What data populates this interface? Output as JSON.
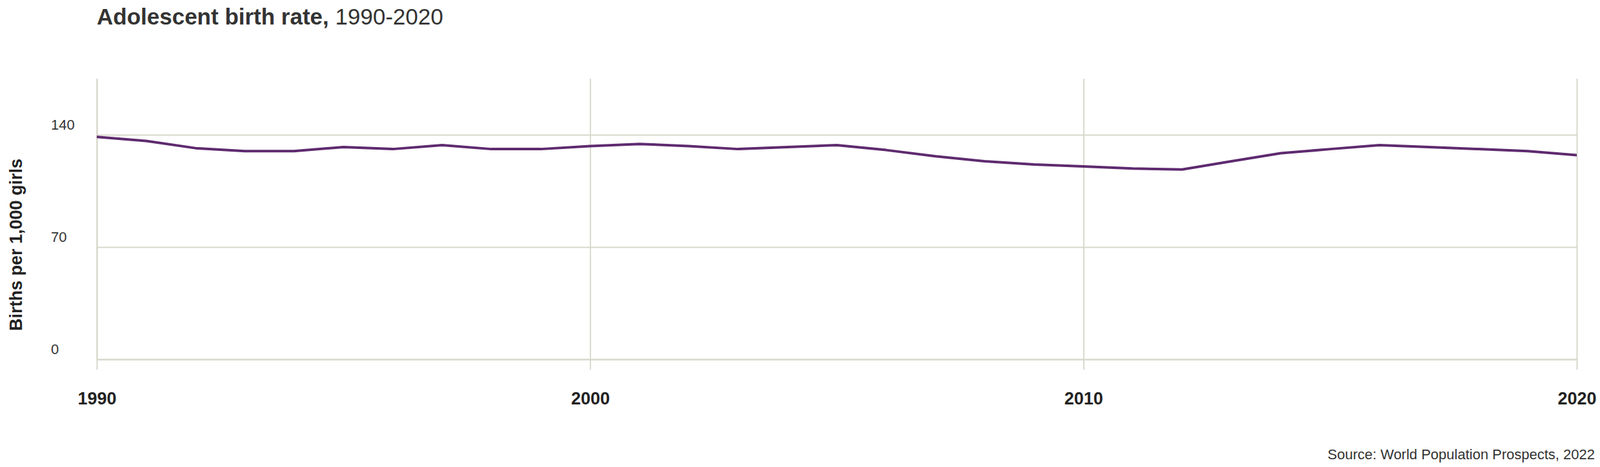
{
  "chart_data": {
    "type": "line",
    "title": "Adolescent birth rate,",
    "subtitle": "1990-2020",
    "y_label": "Births per 1,000 girls",
    "source": "Source: World Population Prospects, 2022",
    "x": [
      1990,
      1991,
      1992,
      1993,
      1994,
      1995,
      1996,
      1997,
      1998,
      1999,
      2000,
      2001,
      2002,
      2003,
      2004,
      2005,
      2006,
      2007,
      2008,
      2009,
      2010,
      2011,
      2012,
      2013,
      2014,
      2015,
      2016,
      2017,
      2018,
      2019,
      2020
    ],
    "values": [
      138.7,
      136.2,
      131.7,
      129.8,
      129.8,
      132.4,
      131.1,
      133.6,
      131.1,
      131.1,
      133.0,
      134.3,
      133.0,
      131.1,
      132.4,
      133.6,
      130.5,
      126.6,
      123.5,
      121.5,
      120.3,
      119.0,
      118.4,
      123.5,
      128.5,
      131.1,
      133.6,
      132.4,
      131.1,
      129.8,
      127.3
    ],
    "color": "#5e2a6f",
    "xlim": [
      1990,
      2020
    ],
    "xticks": [
      1990,
      2000,
      2010,
      2020
    ],
    "ylim": [
      0,
      175
    ],
    "yticks": [
      0,
      70,
      140
    ],
    "grid": true
  }
}
